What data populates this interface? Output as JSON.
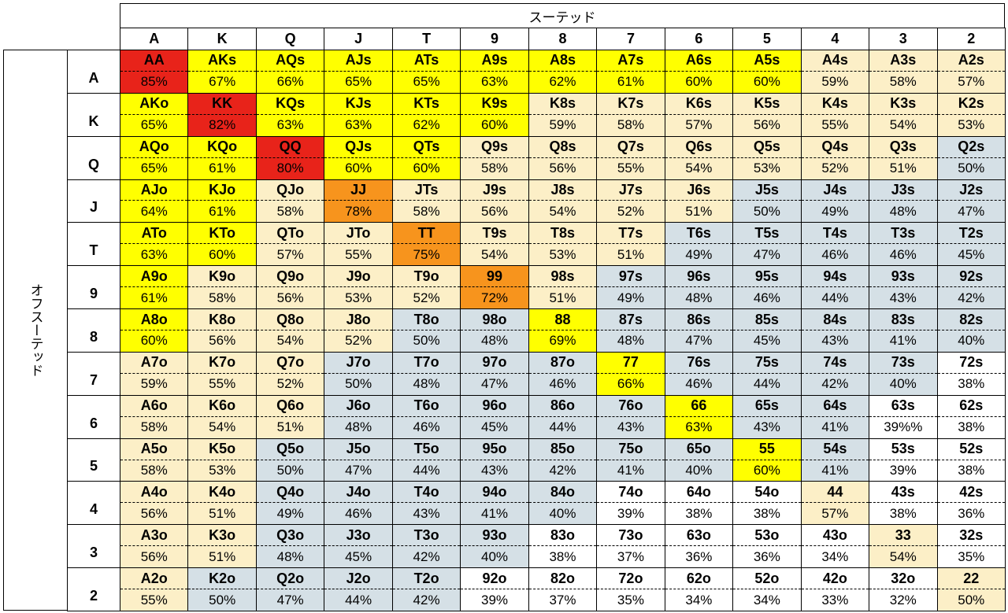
{
  "header": {
    "suited": "スーテッド",
    "offsuit": "オフスーテッド",
    "ranks": [
      "A",
      "K",
      "Q",
      "J",
      "T",
      "9",
      "8",
      "7",
      "6",
      "5",
      "4",
      "3",
      "2"
    ]
  },
  "rows": [
    {
      "label": "A",
      "hands": [
        "AA",
        "AKs",
        "AQs",
        "AJs",
        "ATs",
        "A9s",
        "A8s",
        "A7s",
        "A6s",
        "A5s",
        "A4s",
        "A3s",
        "A2s"
      ],
      "pcts": [
        "85%",
        "67%",
        "66%",
        "65%",
        "65%",
        "63%",
        "62%",
        "61%",
        "60%",
        "60%",
        "59%",
        "58%",
        "57%"
      ],
      "fills": [
        "#e8231a",
        "#ffff00",
        "#ffff00",
        "#ffff00",
        "#ffff00",
        "#ffff00",
        "#ffff00",
        "#ffff00",
        "#ffff00",
        "#ffff00",
        "#fcefc7",
        "#fcefc7",
        "#fcefc7"
      ]
    },
    {
      "label": "K",
      "hands": [
        "AKo",
        "KK",
        "KQs",
        "KJs",
        "KTs",
        "K9s",
        "K8s",
        "K7s",
        "K6s",
        "K5s",
        "K4s",
        "K3s",
        "K2s"
      ],
      "pcts": [
        "65%",
        "82%",
        "63%",
        "63%",
        "62%",
        "60%",
        "59%",
        "58%",
        "57%",
        "56%",
        "55%",
        "54%",
        "53%"
      ],
      "fills": [
        "#ffff00",
        "#e8231a",
        "#ffff00",
        "#ffff00",
        "#ffff00",
        "#ffff00",
        "#fcefc7",
        "#fcefc7",
        "#fcefc7",
        "#fcefc7",
        "#fcefc7",
        "#fcefc7",
        "#fcefc7"
      ]
    },
    {
      "label": "Q",
      "hands": [
        "AQo",
        "KQo",
        "QQ",
        "QJs",
        "QTs",
        "Q9s",
        "Q8s",
        "Q7s",
        "Q6s",
        "Q5s",
        "Q4s",
        "Q3s",
        "Q2s"
      ],
      "pcts": [
        "65%",
        "61%",
        "80%",
        "60%",
        "60%",
        "58%",
        "56%",
        "55%",
        "54%",
        "53%",
        "52%",
        "51%",
        "50%"
      ],
      "fills": [
        "#ffff00",
        "#ffff00",
        "#e8231a",
        "#ffff00",
        "#ffff00",
        "#fcefc7",
        "#fcefc7",
        "#fcefc7",
        "#fcefc7",
        "#fcefc7",
        "#fcefc7",
        "#fcefc7",
        "#d5e0e6"
      ]
    },
    {
      "label": "J",
      "hands": [
        "AJo",
        "KJo",
        "QJo",
        "JJ",
        "JTs",
        "J9s",
        "J8s",
        "J7s",
        "J6s",
        "J5s",
        "J4s",
        "J3s",
        "J2s"
      ],
      "pcts": [
        "64%",
        "61%",
        "58%",
        "78%",
        "58%",
        "56%",
        "54%",
        "52%",
        "51%",
        "50%",
        "49%",
        "48%",
        "47%"
      ],
      "fills": [
        "#ffff00",
        "#ffff00",
        "#fcefc7",
        "#f7941d",
        "#fcefc7",
        "#fcefc7",
        "#fcefc7",
        "#fcefc7",
        "#fcefc7",
        "#d5e0e6",
        "#d5e0e6",
        "#d5e0e6",
        "#d5e0e6"
      ]
    },
    {
      "label": "T",
      "hands": [
        "ATo",
        "KTo",
        "QTo",
        "JTo",
        "TT",
        "T9s",
        "T8s",
        "T7s",
        "T6s",
        "T5s",
        "T4s",
        "T3s",
        "T2s"
      ],
      "pcts": [
        "63%",
        "60%",
        "57%",
        "55%",
        "75%",
        "54%",
        "53%",
        "51%",
        "49%",
        "47%",
        "46%",
        "46%",
        "45%"
      ],
      "fills": [
        "#ffff00",
        "#ffff00",
        "#fcefc7",
        "#fcefc7",
        "#f7941d",
        "#fcefc7",
        "#fcefc7",
        "#fcefc7",
        "#d5e0e6",
        "#d5e0e6",
        "#d5e0e6",
        "#d5e0e6",
        "#d5e0e6"
      ]
    },
    {
      "label": "9",
      "hands": [
        "A9o",
        "K9o",
        "Q9o",
        "J9o",
        "T9o",
        "99",
        "98s",
        "97s",
        "96s",
        "95s",
        "94s",
        "93s",
        "92s"
      ],
      "pcts": [
        "61%",
        "58%",
        "56%",
        "53%",
        "52%",
        "72%",
        "51%",
        "49%",
        "48%",
        "46%",
        "44%",
        "43%",
        "42%"
      ],
      "fills": [
        "#ffff00",
        "#fcefc7",
        "#fcefc7",
        "#fcefc7",
        "#fcefc7",
        "#f7941d",
        "#fcefc7",
        "#d5e0e6",
        "#d5e0e6",
        "#d5e0e6",
        "#d5e0e6",
        "#d5e0e6",
        "#d5e0e6"
      ]
    },
    {
      "label": "8",
      "hands": [
        "A8o",
        "K8o",
        "Q8o",
        "J8o",
        "T8o",
        "98o",
        "88",
        "87s",
        "86s",
        "85s",
        "84s",
        "83s",
        "82s"
      ],
      "pcts": [
        "60%",
        "56%",
        "54%",
        "52%",
        "50%",
        "48%",
        "69%",
        "48%",
        "47%",
        "45%",
        "43%",
        "41%",
        "40%"
      ],
      "fills": [
        "#ffff00",
        "#fcefc7",
        "#fcefc7",
        "#fcefc7",
        "#d5e0e6",
        "#d5e0e6",
        "#ffff00",
        "#d5e0e6",
        "#d5e0e6",
        "#d5e0e6",
        "#d5e0e6",
        "#d5e0e6",
        "#d5e0e6"
      ]
    },
    {
      "label": "7",
      "hands": [
        "A7o",
        "K7o",
        "Q7o",
        "J7o",
        "T7o",
        "97o",
        "87o",
        "77",
        "76s",
        "75s",
        "74s",
        "73s",
        "72s"
      ],
      "pcts": [
        "59%",
        "55%",
        "52%",
        "50%",
        "48%",
        "47%",
        "46%",
        "66%",
        "46%",
        "44%",
        "42%",
        "40%",
        "38%"
      ],
      "fills": [
        "#fcefc7",
        "#fcefc7",
        "#fcefc7",
        "#d5e0e6",
        "#d5e0e6",
        "#d5e0e6",
        "#d5e0e6",
        "#ffff00",
        "#d5e0e6",
        "#d5e0e6",
        "#d5e0e6",
        "#d5e0e6",
        "#ffffff"
      ]
    },
    {
      "label": "6",
      "hands": [
        "A6o",
        "K6o",
        "Q6o",
        "J6o",
        "T6o",
        "96o",
        "86o",
        "76o",
        "66",
        "65s",
        "64s",
        "63s",
        "62s"
      ],
      "pcts": [
        "58%",
        "54%",
        "51%",
        "48%",
        "46%",
        "45%",
        "44%",
        "43%",
        "63%",
        "43%",
        "41%",
        "39%%",
        "38%"
      ],
      "fills": [
        "#fcefc7",
        "#fcefc7",
        "#fcefc7",
        "#d5e0e6",
        "#d5e0e6",
        "#d5e0e6",
        "#d5e0e6",
        "#d5e0e6",
        "#ffff00",
        "#d5e0e6",
        "#d5e0e6",
        "#ffffff",
        "#ffffff"
      ]
    },
    {
      "label": "5",
      "hands": [
        "A5o",
        "K5o",
        "Q5o",
        "J5o",
        "T5o",
        "95o",
        "85o",
        "75o",
        "65o",
        "55",
        "54s",
        "53s",
        "52s"
      ],
      "pcts": [
        "58%",
        "53%",
        "50%",
        "47%",
        "44%",
        "43%",
        "42%",
        "41%",
        "40%",
        "60%",
        "41%",
        "39%",
        "38%"
      ],
      "fills": [
        "#fcefc7",
        "#fcefc7",
        "#d5e0e6",
        "#d5e0e6",
        "#d5e0e6",
        "#d5e0e6",
        "#d5e0e6",
        "#d5e0e6",
        "#d5e0e6",
        "#ffff00",
        "#d5e0e6",
        "#ffffff",
        "#ffffff"
      ]
    },
    {
      "label": "4",
      "hands": [
        "A4o",
        "K4o",
        "Q4o",
        "J4o",
        "T4o",
        "94o",
        "84o",
        "74o",
        "64o",
        "54o",
        "44",
        "43s",
        "42s"
      ],
      "pcts": [
        "56%",
        "51%",
        "49%",
        "46%",
        "43%",
        "41%",
        "40%",
        "39%",
        "38%",
        "38%",
        "57%",
        "38%",
        "36%"
      ],
      "fills": [
        "#fcefc7",
        "#fcefc7",
        "#d5e0e6",
        "#d5e0e6",
        "#d5e0e6",
        "#d5e0e6",
        "#d5e0e6",
        "#ffffff",
        "#ffffff",
        "#ffffff",
        "#fcefc7",
        "#ffffff",
        "#ffffff"
      ]
    },
    {
      "label": "3",
      "hands": [
        "A3o",
        "K3o",
        "Q3o",
        "J3o",
        "T3o",
        "93o",
        "83o",
        "73o",
        "63o",
        "53o",
        "43o",
        "33",
        "32s"
      ],
      "pcts": [
        "56%",
        "51%",
        "48%",
        "45%",
        "42%",
        "40%",
        "38%",
        "37%",
        "36%",
        "36%",
        "34%",
        "54%",
        "35%"
      ],
      "fills": [
        "#fcefc7",
        "#fcefc7",
        "#d5e0e6",
        "#d5e0e6",
        "#d5e0e6",
        "#d5e0e6",
        "#ffffff",
        "#ffffff",
        "#ffffff",
        "#ffffff",
        "#ffffff",
        "#fcefc7",
        "#ffffff"
      ]
    },
    {
      "label": "2",
      "hands": [
        "A2o",
        "K2o",
        "Q2o",
        "J2o",
        "T2o",
        "92o",
        "82o",
        "72o",
        "62o",
        "52o",
        "42o",
        "32o",
        "22"
      ],
      "pcts": [
        "55%",
        "50%",
        "47%",
        "44%",
        "42%",
        "39%",
        "37%",
        "35%",
        "34%",
        "34%",
        "33%",
        "32%",
        "50%"
      ],
      "fills": [
        "#fcefc7",
        "#d5e0e6",
        "#d5e0e6",
        "#d5e0e6",
        "#d5e0e6",
        "#ffffff",
        "#ffffff",
        "#ffffff",
        "#ffffff",
        "#ffffff",
        "#ffffff",
        "#ffffff",
        "#fcefc7"
      ]
    }
  ]
}
